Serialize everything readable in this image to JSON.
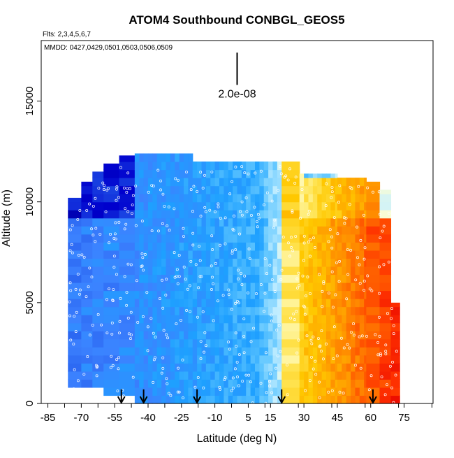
{
  "chart_data": {
    "type": "heatmap",
    "title": "ATOM4 Southbound CONBGL_GEOS5",
    "flights_note": "Flts: 2,3,4,5,6,7",
    "mmdd_note": "MMDD: 0427,0429,0501,0503,0506,0509",
    "xlabel": "Latitude (deg N)",
    "ylabel": "Altitude (m)",
    "xlim": [
      -88,
      88
    ],
    "ylim": [
      0,
      18000
    ],
    "x_ticks": [
      -85,
      -70,
      -55,
      -40,
      -25,
      -10,
      5,
      15,
      30,
      45,
      60,
      75
    ],
    "x_tick_labels": [
      "-85",
      "-70",
      "-55",
      "-40",
      "-25",
      "-10",
      "5",
      "15",
      "30",
      "45",
      "60",
      "75"
    ],
    "y_ticks": [
      0,
      5000,
      10000,
      15000
    ],
    "y_tick_labels": [
      "0",
      "5000",
      "10000",
      "15000"
    ],
    "scale_bar": {
      "label": "2.0e-08",
      "x": 0,
      "y0": 15800,
      "y1": 17400
    },
    "arrow_latitudes": [
      -52,
      -42,
      -18,
      20,
      61
    ],
    "grid": false,
    "colormap": [
      "#00008b",
      "#0000cd",
      "#1e50e6",
      "#3c82ff",
      "#1ea0ff",
      "#64c8ff",
      "#c8f0ff",
      "#ffffd0",
      "#ffe65a",
      "#ffc800",
      "#ffa000",
      "#ff6e00",
      "#ff3200",
      "#e60000"
    ],
    "columns": [
      {
        "lat0": -76,
        "lat1": -70,
        "top": 10200
      },
      {
        "lat0": -70,
        "lat1": -65,
        "top": 11000
      },
      {
        "lat0": -65,
        "lat1": -60,
        "top": 11500
      },
      {
        "lat0": -60,
        "lat1": -53,
        "top": 11900
      },
      {
        "lat0": -53,
        "lat1": -46,
        "top": 12300
      },
      {
        "lat0": -46,
        "lat1": -20,
        "top": 12400
      },
      {
        "lat0": -20,
        "lat1": 0,
        "top": 12000
      },
      {
        "lat0": 0,
        "lat1": 20,
        "top": 12000
      },
      {
        "lat0": 20,
        "lat1": 28,
        "top": 12000
      },
      {
        "lat0": 28,
        "lat1": 45,
        "top": 11400
      },
      {
        "lat0": 45,
        "lat1": 58,
        "top": 11200
      },
      {
        "lat0": 58,
        "lat1": 64,
        "top": 11000
      },
      {
        "lat0": 64,
        "lat1": 69,
        "top": 10600
      },
      {
        "lat0": 69,
        "lat1": 73,
        "top": 5000
      }
    ]
  }
}
